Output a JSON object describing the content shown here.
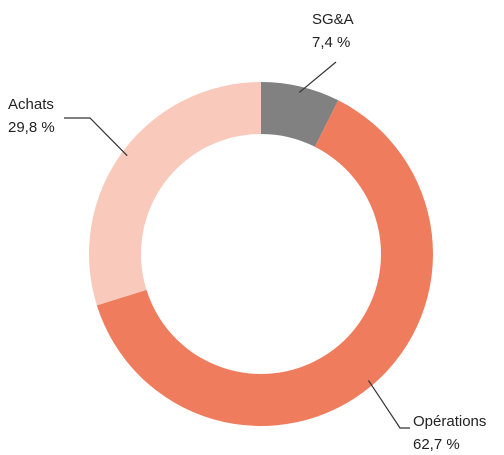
{
  "chart_data": {
    "type": "donut",
    "categories": [
      "SG&A",
      "Opérations",
      "Achats"
    ],
    "values": [
      7.4,
      62.7,
      29.8
    ],
    "value_labels": [
      "7,4 %",
      "62,7 %",
      "29,8 %"
    ],
    "colors": [
      "#818181",
      "#ef7c5d",
      "#f9cabb"
    ]
  }
}
